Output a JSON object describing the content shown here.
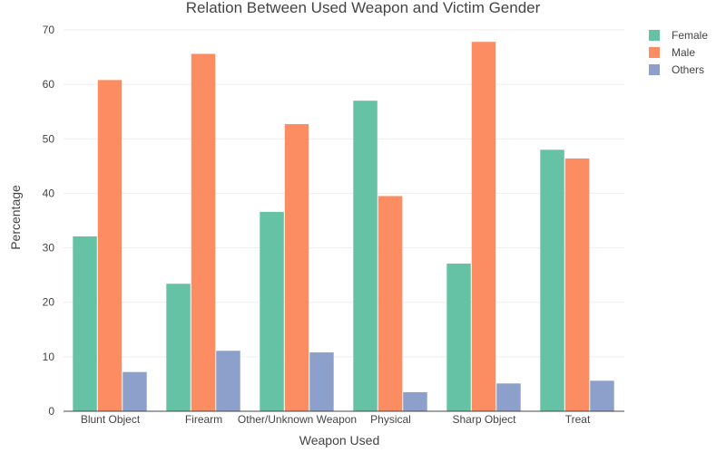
{
  "chart_data": {
    "type": "bar",
    "title": "Relation Between Used Weapon and Victim Gender",
    "xlabel": "Weapon Used",
    "ylabel": "Percentage",
    "categories": [
      "Blunt Object",
      "Firearm",
      "Other/Unknown Weapon",
      "Physical",
      "Sharp Object",
      "Treat"
    ],
    "series": [
      {
        "name": "Female",
        "color": "#66c2a5",
        "values": [
          32.1,
          23.4,
          36.6,
          57.0,
          27.1,
          48.0
        ]
      },
      {
        "name": "Male",
        "color": "#fc8d62",
        "values": [
          60.8,
          65.6,
          52.7,
          39.5,
          67.8,
          46.4
        ]
      },
      {
        "name": "Others",
        "color": "#8da0cb",
        "values": [
          7.2,
          11.1,
          10.8,
          3.5,
          5.1,
          5.6
        ]
      }
    ],
    "ylim": [
      0,
      70
    ],
    "yticks": [
      0,
      10,
      20,
      30,
      40,
      50,
      60,
      70
    ],
    "grid": true,
    "legend_position": "top-right"
  }
}
